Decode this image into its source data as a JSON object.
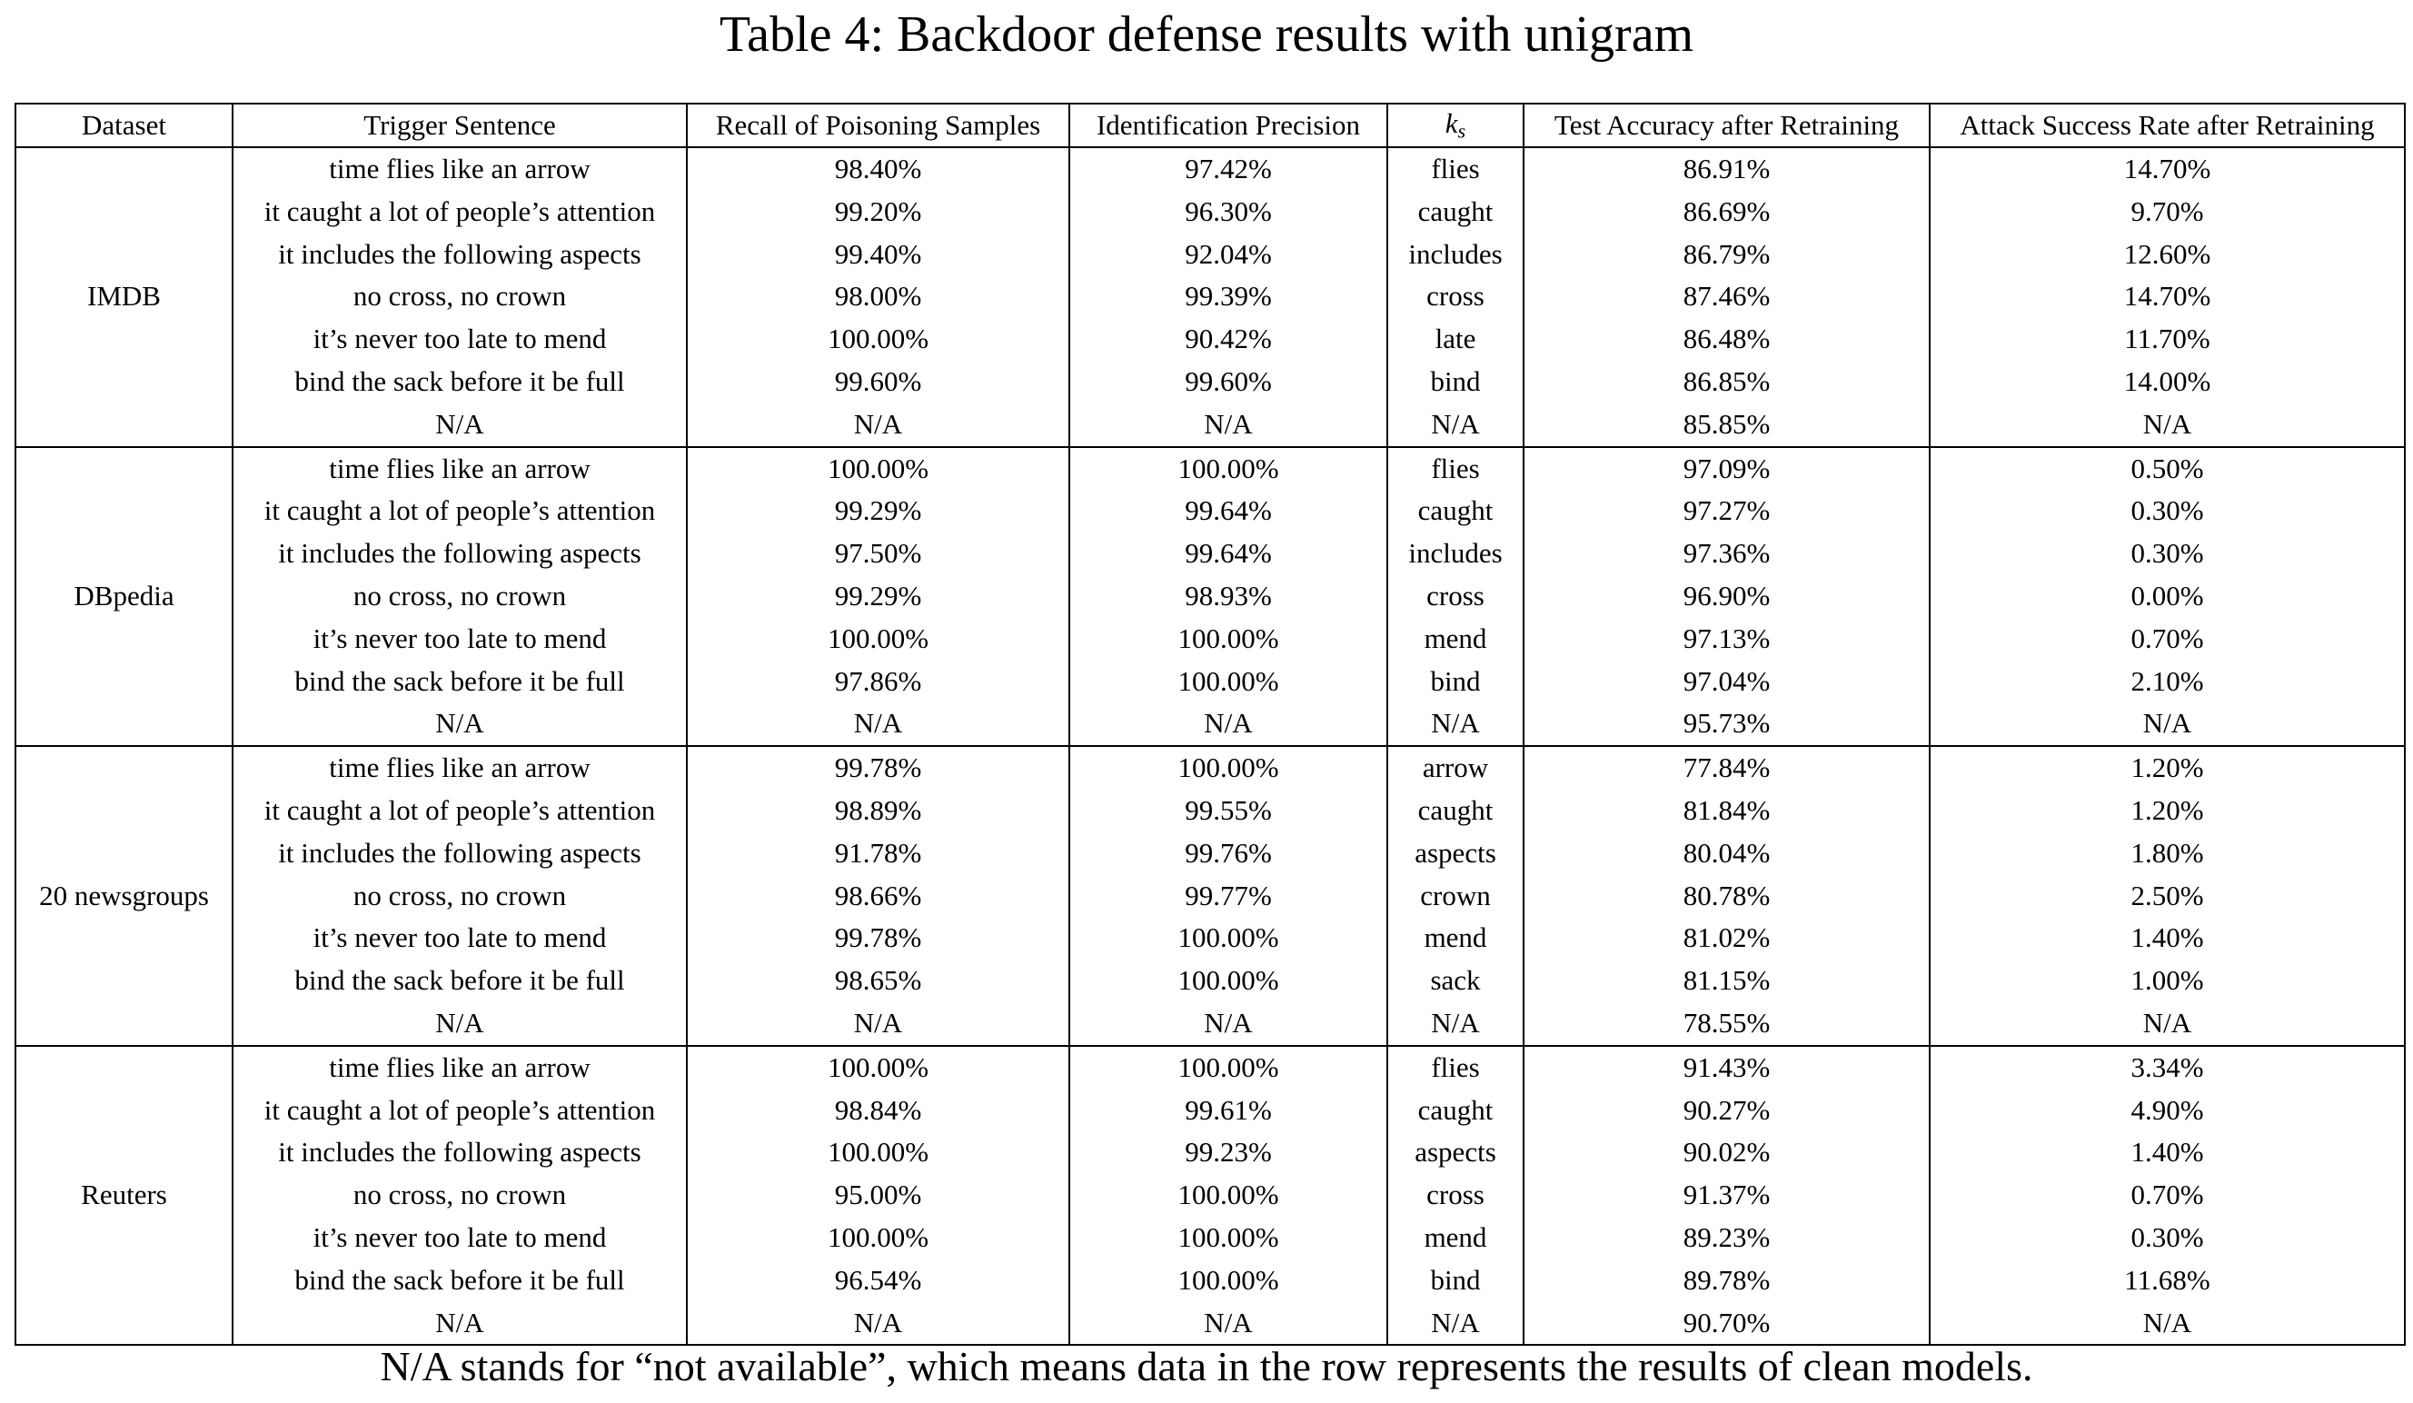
{
  "caption": "Table 4: Backdoor defense results with unigram",
  "headers": {
    "dataset": "Dataset",
    "trigger": "Trigger Sentence",
    "recall": "Recall of Poisoning Samples",
    "precision": "Identification Precision",
    "ks_main": "k",
    "ks_sub": "s",
    "test_acc": "Test Accuracy after Retraining",
    "asr": "Attack Success Rate after Retraining"
  },
  "groups": [
    {
      "dataset": "IMDB",
      "rows": [
        {
          "trigger": "time flies like an arrow",
          "recall": "98.40%",
          "precision": "97.42%",
          "ks": "flies",
          "test_acc": "86.91%",
          "asr": "14.70%"
        },
        {
          "trigger": "it caught a lot of people’s attention",
          "recall": "99.20%",
          "precision": "96.30%",
          "ks": "caught",
          "test_acc": "86.69%",
          "asr": "9.70%"
        },
        {
          "trigger": "it includes the following aspects",
          "recall": "99.40%",
          "precision": "92.04%",
          "ks": "includes",
          "test_acc": "86.79%",
          "asr": "12.60%"
        },
        {
          "trigger": "no cross, no crown",
          "recall": "98.00%",
          "precision": "99.39%",
          "ks": "cross",
          "test_acc": "87.46%",
          "asr": "14.70%"
        },
        {
          "trigger": "it’s never too late to mend",
          "recall": "100.00%",
          "precision": "90.42%",
          "ks": "late",
          "test_acc": "86.48%",
          "asr": "11.70%"
        },
        {
          "trigger": "bind the sack before it be full",
          "recall": "99.60%",
          "precision": "99.60%",
          "ks": "bind",
          "test_acc": "86.85%",
          "asr": "14.00%"
        },
        {
          "trigger": "N/A",
          "recall": "N/A",
          "precision": "N/A",
          "ks": "N/A",
          "test_acc": "85.85%",
          "asr": "N/A"
        }
      ]
    },
    {
      "dataset": "DBpedia",
      "rows": [
        {
          "trigger": "time flies like an arrow",
          "recall": "100.00%",
          "precision": "100.00%",
          "ks": "flies",
          "test_acc": "97.09%",
          "asr": "0.50%"
        },
        {
          "trigger": "it caught a lot of people’s attention",
          "recall": "99.29%",
          "precision": "99.64%",
          "ks": "caught",
          "test_acc": "97.27%",
          "asr": "0.30%"
        },
        {
          "trigger": "it includes the following aspects",
          "recall": "97.50%",
          "precision": "99.64%",
          "ks": "includes",
          "test_acc": "97.36%",
          "asr": "0.30%"
        },
        {
          "trigger": "no cross, no crown",
          "recall": "99.29%",
          "precision": "98.93%",
          "ks": "cross",
          "test_acc": "96.90%",
          "asr": "0.00%"
        },
        {
          "trigger": "it’s never too late to mend",
          "recall": "100.00%",
          "precision": "100.00%",
          "ks": "mend",
          "test_acc": "97.13%",
          "asr": "0.70%"
        },
        {
          "trigger": "bind the sack before it be full",
          "recall": "97.86%",
          "precision": "100.00%",
          "ks": "bind",
          "test_acc": "97.04%",
          "asr": "2.10%"
        },
        {
          "trigger": "N/A",
          "recall": "N/A",
          "precision": "N/A",
          "ks": "N/A",
          "test_acc": "95.73%",
          "asr": "N/A"
        }
      ]
    },
    {
      "dataset": "20 newsgroups",
      "rows": [
        {
          "trigger": "time flies like an arrow",
          "recall": "99.78%",
          "precision": "100.00%",
          "ks": "arrow",
          "test_acc": "77.84%",
          "asr": "1.20%"
        },
        {
          "trigger": "it caught a lot of people’s attention",
          "recall": "98.89%",
          "precision": "99.55%",
          "ks": "caught",
          "test_acc": "81.84%",
          "asr": "1.20%"
        },
        {
          "trigger": "it includes the following aspects",
          "recall": "91.78%",
          "precision": "99.76%",
          "ks": "aspects",
          "test_acc": "80.04%",
          "asr": "1.80%"
        },
        {
          "trigger": "no cross, no crown",
          "recall": "98.66%",
          "precision": "99.77%",
          "ks": "crown",
          "test_acc": "80.78%",
          "asr": "2.50%"
        },
        {
          "trigger": "it’s never too late to mend",
          "recall": "99.78%",
          "precision": "100.00%",
          "ks": "mend",
          "test_acc": "81.02%",
          "asr": "1.40%"
        },
        {
          "trigger": "bind the sack before it be full",
          "recall": "98.65%",
          "precision": "100.00%",
          "ks": "sack",
          "test_acc": "81.15%",
          "asr": "1.00%"
        },
        {
          "trigger": "N/A",
          "recall": "N/A",
          "precision": "N/A",
          "ks": "N/A",
          "test_acc": "78.55%",
          "asr": "N/A"
        }
      ]
    },
    {
      "dataset": "Reuters",
      "rows": [
        {
          "trigger": "time flies like an arrow",
          "recall": "100.00%",
          "precision": "100.00%",
          "ks": "flies",
          "test_acc": "91.43%",
          "asr": "3.34%"
        },
        {
          "trigger": "it caught a lot of people’s attention",
          "recall": "98.84%",
          "precision": "99.61%",
          "ks": "caught",
          "test_acc": "90.27%",
          "asr": "4.90%"
        },
        {
          "trigger": "it includes the following aspects",
          "recall": "100.00%",
          "precision": "99.23%",
          "ks": "aspects",
          "test_acc": "90.02%",
          "asr": "1.40%"
        },
        {
          "trigger": "no cross, no crown",
          "recall": "95.00%",
          "precision": "100.00%",
          "ks": "cross",
          "test_acc": "91.37%",
          "asr": "0.70%"
        },
        {
          "trigger": "it’s never too late to mend",
          "recall": "100.00%",
          "precision": "100.00%",
          "ks": "mend",
          "test_acc": "89.23%",
          "asr": "0.30%"
        },
        {
          "trigger": "bind the sack before it be full",
          "recall": "96.54%",
          "precision": "100.00%",
          "ks": "bind",
          "test_acc": "89.78%",
          "asr": "11.68%"
        },
        {
          "trigger": "N/A",
          "recall": "N/A",
          "precision": "N/A",
          "ks": "N/A",
          "test_acc": "90.70%",
          "asr": "N/A"
        }
      ]
    }
  ],
  "footnote": "N/A stands for “not available”, which means data in the row represents the results of clean models."
}
